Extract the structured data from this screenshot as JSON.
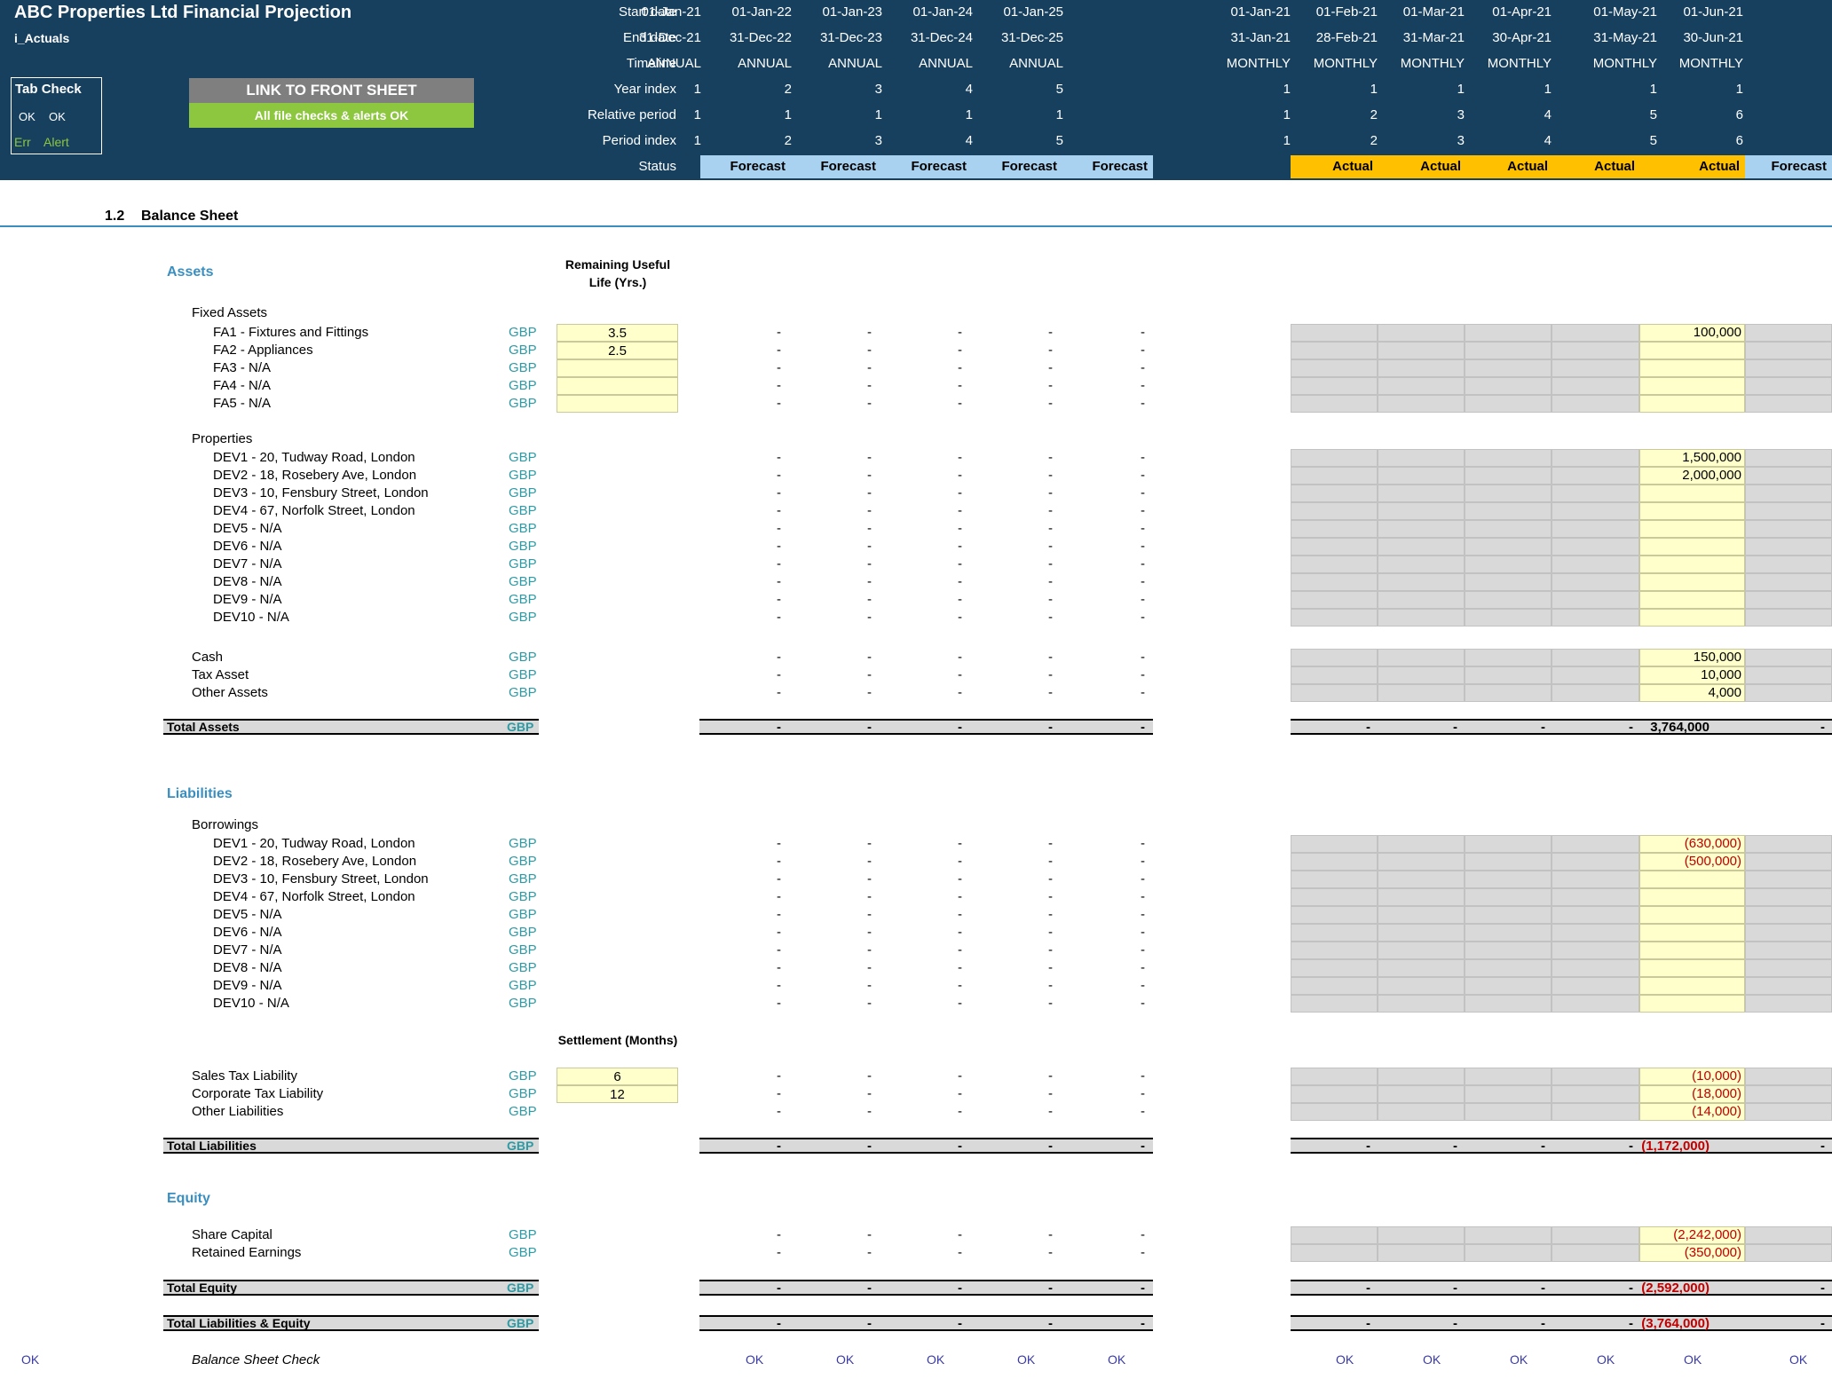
{
  "title": "ABC Properties Ltd Financial Projection",
  "sheet_name": "i_Actuals",
  "tab_check": {
    "label": "Tab Check",
    "ok1": "OK",
    "ok2": "OK",
    "err": "Err",
    "alert": "Alert"
  },
  "link_button": "LINK TO FRONT SHEET",
  "checks_ok": "All file checks & alerts OK",
  "row_labels": {
    "start": "Start date",
    "end": "End date",
    "timeline": "Timeline",
    "year_index": "Year index",
    "relative": "Relative period",
    "period_index": "Period index",
    "status": "Status"
  },
  "annual_cols": [
    {
      "start": "01-Jan-21",
      "end": "31-Dec-21",
      "timeline": "ANNUAL",
      "year": "1",
      "rel": "1",
      "period": "1",
      "status": "Forecast"
    },
    {
      "start": "01-Jan-22",
      "end": "31-Dec-22",
      "timeline": "ANNUAL",
      "year": "2",
      "rel": "1",
      "period": "2",
      "status": "Forecast"
    },
    {
      "start": "01-Jan-23",
      "end": "31-Dec-23",
      "timeline": "ANNUAL",
      "year": "3",
      "rel": "1",
      "period": "3",
      "status": "Forecast"
    },
    {
      "start": "01-Jan-24",
      "end": "31-Dec-24",
      "timeline": "ANNUAL",
      "year": "4",
      "rel": "1",
      "period": "4",
      "status": "Forecast"
    },
    {
      "start": "01-Jan-25",
      "end": "31-Dec-25",
      "timeline": "ANNUAL",
      "year": "5",
      "rel": "1",
      "period": "5",
      "status": "Forecast"
    }
  ],
  "monthly_cols": [
    {
      "start": "01-Jan-21",
      "end": "31-Jan-21",
      "timeline": "MONTHLY",
      "year": "1",
      "rel": "1",
      "period": "1",
      "status": "Actual"
    },
    {
      "start": "01-Feb-21",
      "end": "28-Feb-21",
      "timeline": "MONTHLY",
      "year": "1",
      "rel": "2",
      "period": "2",
      "status": "Actual"
    },
    {
      "start": "01-Mar-21",
      "end": "31-Mar-21",
      "timeline": "MONTHLY",
      "year": "1",
      "rel": "3",
      "period": "3",
      "status": "Actual"
    },
    {
      "start": "01-Apr-21",
      "end": "30-Apr-21",
      "timeline": "MONTHLY",
      "year": "1",
      "rel": "4",
      "period": "4",
      "status": "Actual"
    },
    {
      "start": "01-May-21",
      "end": "31-May-21",
      "timeline": "MONTHLY",
      "year": "1",
      "rel": "5",
      "period": "5",
      "status": "Actual"
    },
    {
      "start": "01-Jun-21",
      "end": "30-Jun-21",
      "timeline": "MONTHLY",
      "year": "1",
      "rel": "6",
      "period": "6",
      "status": "Forecast"
    }
  ],
  "section": {
    "number": "1.2",
    "title": "Balance Sheet"
  },
  "currency": "GBP",
  "dash": "-",
  "ok": "OK",
  "assets": {
    "heading": "Assets",
    "useful_life_header": "Remaining Useful Life (Yrs.)",
    "fixed_assets_label": "Fixed Assets",
    "fixed_assets": [
      {
        "label": "FA1 - Fixtures and Fittings",
        "life": "3.5",
        "may": "100,000"
      },
      {
        "label": "FA2 - Appliances",
        "life": "2.5",
        "may": ""
      },
      {
        "label": "FA3 - N/A",
        "life": "",
        "may": ""
      },
      {
        "label": "FA4 - N/A",
        "life": "",
        "may": ""
      },
      {
        "label": "FA5 - N/A",
        "life": "",
        "may": ""
      }
    ],
    "properties_label": "Properties",
    "properties": [
      {
        "label": "DEV1 - 20, Tudway Road, London",
        "may": "1,500,000"
      },
      {
        "label": "DEV2 - 18, Rosebery Ave, London",
        "may": "2,000,000"
      },
      {
        "label": "DEV3 - 10, Fensbury Street, London",
        "may": ""
      },
      {
        "label": "DEV4 - 67, Norfolk Street, London",
        "may": ""
      },
      {
        "label": "DEV5 - N/A",
        "may": ""
      },
      {
        "label": "DEV6 - N/A",
        "may": ""
      },
      {
        "label": "DEV7 - N/A",
        "may": ""
      },
      {
        "label": "DEV8 - N/A",
        "may": ""
      },
      {
        "label": "DEV9 - N/A",
        "may": ""
      },
      {
        "label": "DEV10 - N/A",
        "may": ""
      }
    ],
    "other": [
      {
        "label": "Cash",
        "may": "150,000"
      },
      {
        "label": "Tax Asset",
        "may": "10,000"
      },
      {
        "label": "Other Assets",
        "may": "4,000"
      }
    ],
    "total_label": "Total Assets",
    "total_may": "3,764,000"
  },
  "liabilities": {
    "heading": "Liabilities",
    "borrowings_label": "Borrowings",
    "borrowings": [
      {
        "label": "DEV1 - 20, Tudway Road, London",
        "may": "(630,000)"
      },
      {
        "label": "DEV2 - 18, Rosebery Ave, London",
        "may": "(500,000)"
      },
      {
        "label": "DEV3 - 10, Fensbury Street, London",
        "may": ""
      },
      {
        "label": "DEV4 - 67, Norfolk Street, London",
        "may": ""
      },
      {
        "label": "DEV5 - N/A",
        "may": ""
      },
      {
        "label": "DEV6 - N/A",
        "may": ""
      },
      {
        "label": "DEV7 - N/A",
        "may": ""
      },
      {
        "label": "DEV8 - N/A",
        "may": ""
      },
      {
        "label": "DEV9 - N/A",
        "may": ""
      },
      {
        "label": "DEV10 - N/A",
        "may": ""
      }
    ],
    "settlement_header": "Settlement (Months)",
    "tax": [
      {
        "label": "Sales Tax Liability",
        "months": "6",
        "may": "(10,000)"
      },
      {
        "label": "Corporate Tax Liability",
        "months": "12",
        "may": "(18,000)"
      },
      {
        "label": "Other Liabilities",
        "months": "",
        "may": "(14,000)"
      }
    ],
    "total_label": "Total Liabilities",
    "total_may": "(1,172,000)"
  },
  "equity": {
    "heading": "Equity",
    "items": [
      {
        "label": "Share Capital",
        "may": "(2,242,000)"
      },
      {
        "label": "Retained Earnings",
        "may": "(350,000)"
      }
    ],
    "total_label": "Total Equity",
    "total_may": "(2,592,000)",
    "total_le_label": "Total Liabilities & Equity",
    "total_le_may": "(3,764,000)"
  },
  "check_label": "Balance Sheet Check",
  "colors": {
    "header_bg": "#17405f",
    "forecast_bg": "#a9d2f0",
    "actual_bg": "#ffc000",
    "button_grey": "#7f7f7f",
    "button_green": "#8dc63f",
    "input_yellow": "#ffffcc"
  }
}
